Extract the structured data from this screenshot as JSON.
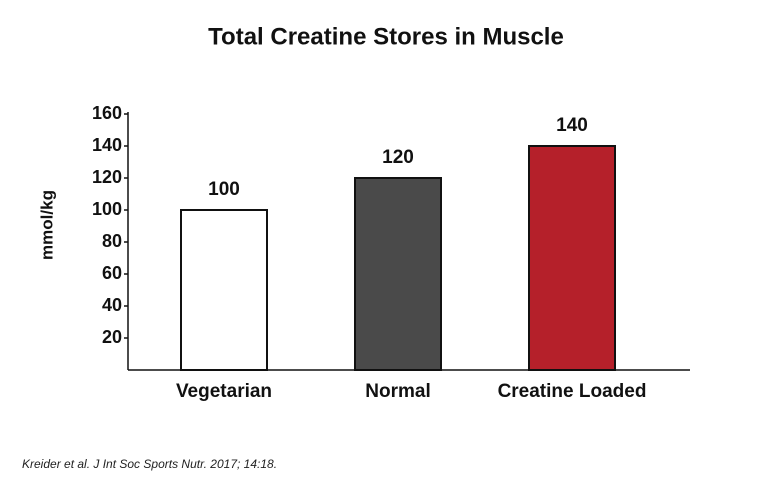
{
  "chart_data": {
    "type": "bar",
    "title": "Total Creatine Stores in Muscle",
    "y_label": "mmol/kg",
    "categories": [
      "Vegetarian",
      "Normal",
      "Creatine Loaded"
    ],
    "values": [
      100,
      120,
      140
    ],
    "colors": [
      "#ffffff",
      "#4a4a4a",
      "#b5202a"
    ],
    "ylim": [
      0,
      160
    ],
    "yticks": [
      20,
      40,
      60,
      80,
      100,
      120,
      140,
      160
    ],
    "source": "Kreider et al. J Int Soc Sports Nutr. 2017; 14:18."
  }
}
